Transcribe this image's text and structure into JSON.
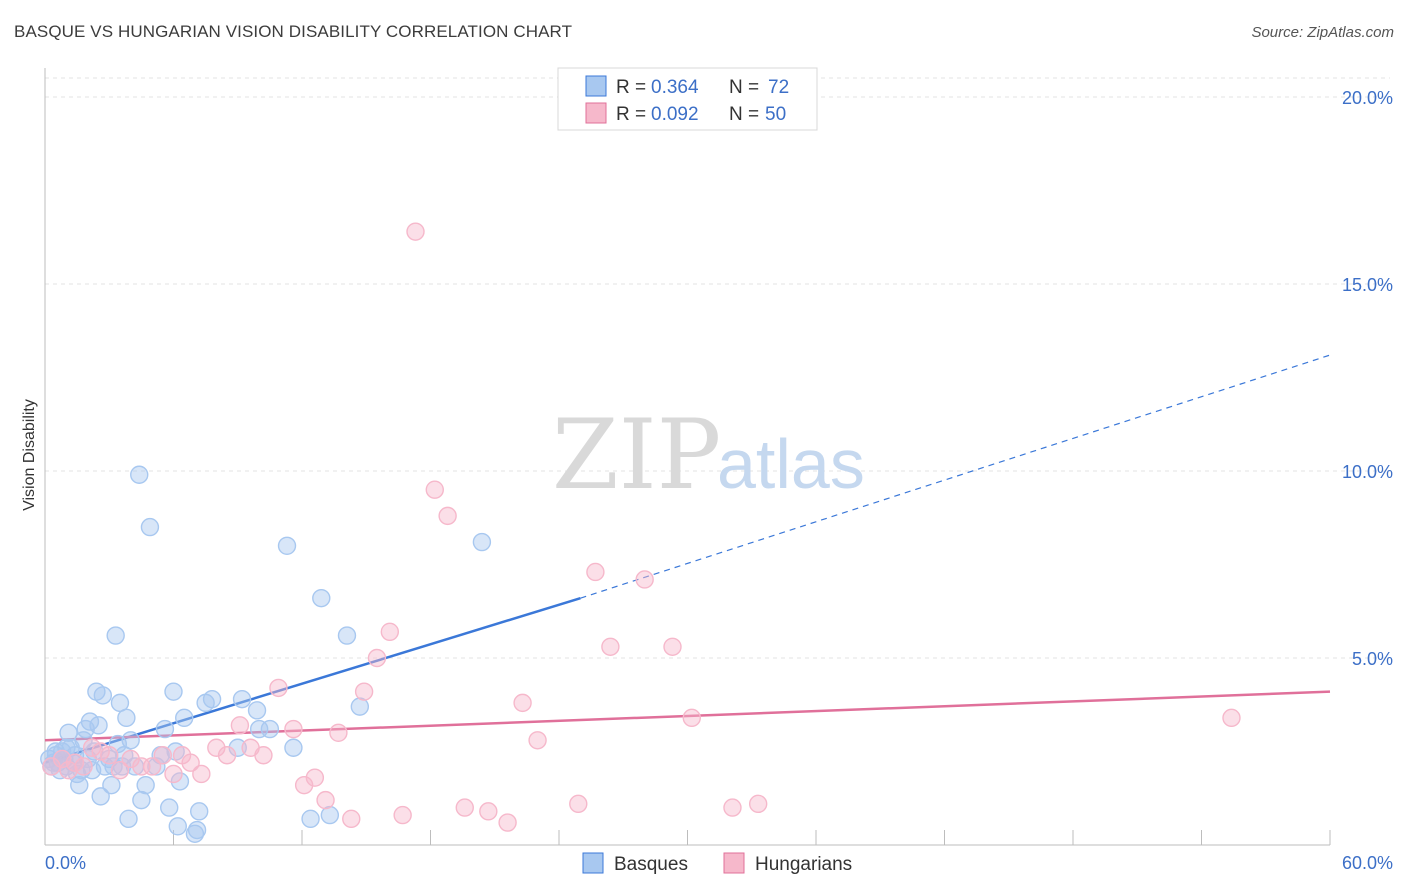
{
  "title": "BASQUE VS HUNGARIAN VISION DISABILITY CORRELATION CHART",
  "source": "Source: ZipAtlas.com",
  "watermark": {
    "zip": "ZIP",
    "atlas": "atlas"
  },
  "legend": {
    "rows": [
      {
        "r_label": "R =",
        "r_value": "0.364",
        "n_label": "N =",
        "n_value": "72",
        "color": "#a8c8f0"
      },
      {
        "r_label": "R =",
        "r_value": "0.092",
        "n_label": "N =",
        "n_value": "50",
        "color": "#f6b8cb"
      }
    ]
  },
  "chart_data": {
    "type": "scatter",
    "title": "BASQUE VS HUNGARIAN VISION DISABILITY CORRELATION CHART",
    "xlabel": "",
    "ylabel": "Vision Disability",
    "xlim": [
      0,
      60
    ],
    "ylim": [
      0,
      20
    ],
    "x_tick_labels": [
      "0.0%",
      "60.0%"
    ],
    "y_ticks": [
      {
        "value": 5,
        "label": "5.0%"
      },
      {
        "value": 10,
        "label": "10.0%"
      },
      {
        "value": 15,
        "label": "15.0%"
      },
      {
        "value": 20,
        "label": "20.0%"
      }
    ],
    "grid": true,
    "legend_position": "top-center",
    "series": [
      {
        "name": "Basques",
        "color": "#3b78d8",
        "fill": "#a8c8f0",
        "trend": {
          "x0": 0,
          "y0": 2.2,
          "x1": 25,
          "y1": 6.6,
          "dash_to": 60,
          "dash_y": 13.1
        },
        "points": [
          [
            0.2,
            2.3
          ],
          [
            0.3,
            2.1
          ],
          [
            0.4,
            2.2
          ],
          [
            0.5,
            2.4
          ],
          [
            0.6,
            2.2
          ],
          [
            0.7,
            2.0
          ],
          [
            0.8,
            2.5
          ],
          [
            0.9,
            2.3
          ],
          [
            1.0,
            2.1
          ],
          [
            1.1,
            3.0
          ],
          [
            1.2,
            2.6
          ],
          [
            1.3,
            2.2
          ],
          [
            1.4,
            2.4
          ],
          [
            1.5,
            1.9
          ],
          [
            1.6,
            1.6
          ],
          [
            1.7,
            2.0
          ],
          [
            1.8,
            2.8
          ],
          [
            1.9,
            3.1
          ],
          [
            2.0,
            2.3
          ],
          [
            2.1,
            3.3
          ],
          [
            2.2,
            2.0
          ],
          [
            2.3,
            2.5
          ],
          [
            2.4,
            4.1
          ],
          [
            2.5,
            3.2
          ],
          [
            2.6,
            1.3
          ],
          [
            2.7,
            4.0
          ],
          [
            2.8,
            2.1
          ],
          [
            3.0,
            2.3
          ],
          [
            3.1,
            1.6
          ],
          [
            3.2,
            2.1
          ],
          [
            3.3,
            5.6
          ],
          [
            3.4,
            2.7
          ],
          [
            3.5,
            3.8
          ],
          [
            3.6,
            2.1
          ],
          [
            3.7,
            2.4
          ],
          [
            3.8,
            3.4
          ],
          [
            3.9,
            0.7
          ],
          [
            4.0,
            2.8
          ],
          [
            4.2,
            2.1
          ],
          [
            4.4,
            9.9
          ],
          [
            4.5,
            1.2
          ],
          [
            4.7,
            1.6
          ],
          [
            4.9,
            8.5
          ],
          [
            5.2,
            2.1
          ],
          [
            5.4,
            2.4
          ],
          [
            5.6,
            3.1
          ],
          [
            5.8,
            1.0
          ],
          [
            6.0,
            4.1
          ],
          [
            6.1,
            2.5
          ],
          [
            6.2,
            0.5
          ],
          [
            6.3,
            1.7
          ],
          [
            6.5,
            3.4
          ],
          [
            7.0,
            0.3
          ],
          [
            7.1,
            0.4
          ],
          [
            7.2,
            0.9
          ],
          [
            7.5,
            3.8
          ],
          [
            7.8,
            3.9
          ],
          [
            9.0,
            2.6
          ],
          [
            9.2,
            3.9
          ],
          [
            9.9,
            3.6
          ],
          [
            10.0,
            3.1
          ],
          [
            10.5,
            3.1
          ],
          [
            11.3,
            8.0
          ],
          [
            11.6,
            2.6
          ],
          [
            12.4,
            0.7
          ],
          [
            12.9,
            6.6
          ],
          [
            13.3,
            0.8
          ],
          [
            14.1,
            5.6
          ],
          [
            14.7,
            3.7
          ],
          [
            20.4,
            8.1
          ],
          [
            0.5,
            2.5
          ],
          [
            1.0,
            2.6
          ]
        ]
      },
      {
        "name": "Hungarians",
        "color": "#e0709a",
        "fill": "#f6b8cb",
        "trend": {
          "x0": 0,
          "y0": 2.8,
          "x1": 60,
          "y1": 4.1
        },
        "points": [
          [
            0.3,
            2.1
          ],
          [
            0.8,
            2.3
          ],
          [
            1.1,
            2.0
          ],
          [
            1.4,
            2.2
          ],
          [
            1.8,
            2.1
          ],
          [
            2.2,
            2.6
          ],
          [
            2.6,
            2.5
          ],
          [
            3.0,
            2.4
          ],
          [
            3.5,
            2.0
          ],
          [
            4.0,
            2.3
          ],
          [
            4.5,
            2.1
          ],
          [
            5.0,
            2.1
          ],
          [
            5.5,
            2.4
          ],
          [
            6.0,
            1.9
          ],
          [
            6.4,
            2.4
          ],
          [
            6.8,
            2.2
          ],
          [
            7.3,
            1.9
          ],
          [
            8.0,
            2.6
          ],
          [
            8.5,
            2.4
          ],
          [
            9.1,
            3.2
          ],
          [
            9.6,
            2.6
          ],
          [
            10.2,
            2.4
          ],
          [
            10.9,
            4.2
          ],
          [
            11.6,
            3.1
          ],
          [
            12.1,
            1.6
          ],
          [
            12.6,
            1.8
          ],
          [
            13.1,
            1.2
          ],
          [
            13.7,
            3.0
          ],
          [
            14.3,
            0.7
          ],
          [
            14.9,
            4.1
          ],
          [
            15.5,
            5.0
          ],
          [
            16.1,
            5.7
          ],
          [
            16.7,
            0.8
          ],
          [
            17.3,
            16.4
          ],
          [
            18.2,
            9.5
          ],
          [
            18.8,
            8.8
          ],
          [
            19.6,
            1.0
          ],
          [
            20.7,
            0.9
          ],
          [
            21.6,
            0.6
          ],
          [
            22.3,
            3.8
          ],
          [
            23.0,
            2.8
          ],
          [
            24.9,
            1.1
          ],
          [
            25.7,
            7.3
          ],
          [
            26.4,
            5.3
          ],
          [
            28.0,
            7.1
          ],
          [
            29.3,
            5.3
          ],
          [
            30.2,
            3.4
          ],
          [
            32.1,
            1.0
          ],
          [
            33.3,
            1.1
          ],
          [
            55.4,
            3.4
          ]
        ]
      }
    ]
  }
}
